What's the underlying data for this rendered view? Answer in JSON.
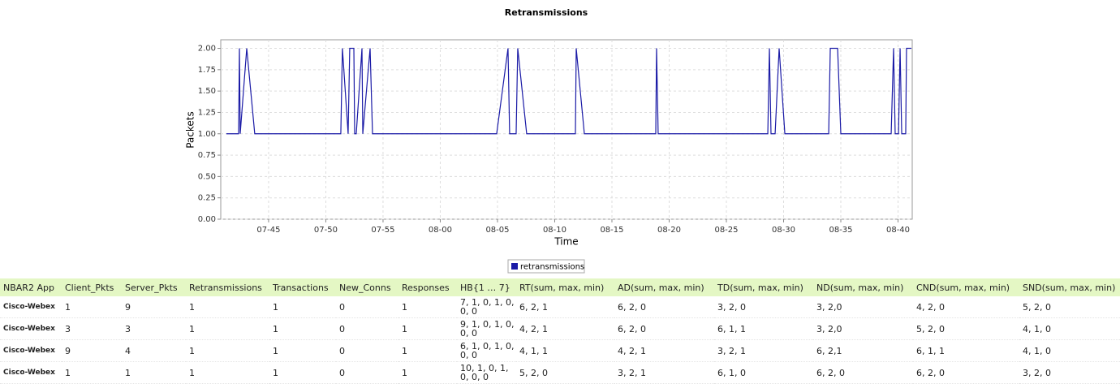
{
  "chart_data": {
    "type": "line",
    "title": "Retransmissions",
    "x_label": "Time",
    "y_label": "Packets",
    "x": [
      461.31,
      462.38,
      462.45,
      462.52,
      463.09,
      463.79,
      471.31,
      471.45,
      471.95,
      472.09,
      472.45,
      472.52,
      472.66,
      473.16,
      473.23,
      473.87,
      474.08,
      484.93,
      485.92,
      486.06,
      486.63,
      486.77,
      487.55,
      491.81,
      491.88,
      492.59,
      498.83,
      498.9,
      499.04,
      508.62,
      508.76,
      508.9,
      509.26,
      509.61,
      510.11,
      513.94,
      514.08,
      514.72,
      515.0,
      519.4,
      519.61,
      519.75,
      520.04,
      520.18,
      520.32,
      520.67,
      520.74,
      521.17
    ],
    "series": [
      {
        "name": "retransmissions",
        "color": "#1a1aa6",
        "values": [
          1,
          1,
          2,
          1,
          2,
          1,
          1,
          2,
          1,
          2,
          2,
          1,
          1,
          2,
          1,
          2,
          1,
          1,
          2,
          1,
          1,
          2,
          1,
          1,
          2,
          1,
          1,
          2,
          1,
          1,
          2,
          1,
          1,
          2,
          1,
          1,
          2,
          2,
          1,
          1,
          2,
          1,
          1,
          2,
          1,
          1,
          2,
          2
        ]
      }
    ],
    "xlim": [
      460.82,
      521.24
    ],
    "ylim": [
      0,
      2.1
    ],
    "xticks": [
      {
        "value": 465,
        "label": "07-45"
      },
      {
        "value": 470,
        "label": "07-50"
      },
      {
        "value": 475,
        "label": "07-55"
      },
      {
        "value": 480,
        "label": "08-00"
      },
      {
        "value": 485,
        "label": "08-05"
      },
      {
        "value": 490,
        "label": "08-10"
      },
      {
        "value": 495,
        "label": "08-15"
      },
      {
        "value": 500,
        "label": "08-20"
      },
      {
        "value": 505,
        "label": "08-25"
      },
      {
        "value": 510,
        "label": "08-30"
      },
      {
        "value": 515,
        "label": "08-35"
      },
      {
        "value": 520,
        "label": "08-40"
      }
    ],
    "yticks": [
      {
        "value": 0,
        "label": "0.00"
      },
      {
        "value": 0.25,
        "label": "0.25"
      },
      {
        "value": 0.5,
        "label": "0.50"
      },
      {
        "value": 0.75,
        "label": "0.75"
      },
      {
        "value": 1,
        "label": "1.00"
      },
      {
        "value": 1.25,
        "label": "1.25"
      },
      {
        "value": 1.5,
        "label": "1.50"
      },
      {
        "value": 1.75,
        "label": "1.75"
      },
      {
        "value": 2,
        "label": "2.00"
      }
    ],
    "grid": true,
    "legend": "bottom"
  },
  "table": {
    "header": [
      "NBAR2 App",
      "Client_Pkts",
      "Server_Pkts",
      "Retransmissions",
      "Transactions",
      "New_Conns",
      "Responses",
      "HB{1 … 7}",
      "RT(sum, max, min)",
      "AD(sum, max, min)",
      "TD(sum, max, min)",
      "ND(sum, max, min)",
      "CND(sum, max, min)",
      "SND(sum, max, min)"
    ],
    "rows": [
      [
        "Cisco-Webex",
        "1",
        "9",
        "1",
        "1",
        "0",
        "1",
        "7, 1, 0, 1, 0, 0, 0",
        "6, 2, 1",
        "6, 2, 0",
        "3, 2, 0",
        "3, 2,0",
        "4, 2, 0",
        "5, 2, 0"
      ],
      [
        "Cisco-Webex",
        "3",
        "3",
        "1",
        "1",
        "0",
        "1",
        "9, 1, 0, 1, 0, 0, 0",
        "4, 2, 1",
        "6, 2, 0",
        "6, 1, 1",
        "3, 2,0",
        "5, 2, 0",
        "4, 1, 0"
      ],
      [
        "Cisco-Webex",
        "9",
        "4",
        "1",
        "1",
        "0",
        "1",
        "6, 1, 0, 1, 0, 0, 0",
        "4, 1, 1",
        "4, 2, 1",
        "3, 2, 1",
        "6, 2,1",
        "6, 1, 1",
        "4, 1, 0"
      ],
      [
        "Cisco-Webex",
        "1",
        "1",
        "1",
        "1",
        "0",
        "1",
        "10, 1, 0, 1, 0, 0, 0",
        "5, 2, 0",
        "3, 2, 1",
        "6, 1, 0",
        "6, 2, 0",
        "6, 2, 0",
        "3, 2, 0"
      ]
    ]
  }
}
